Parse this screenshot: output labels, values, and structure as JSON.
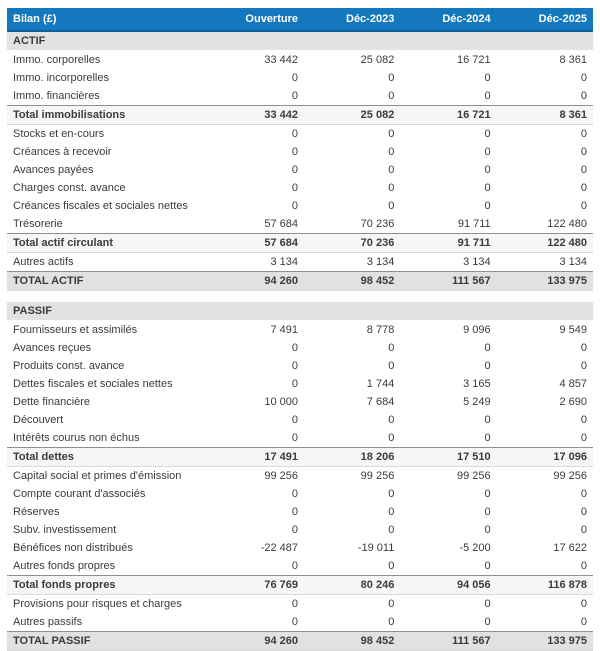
{
  "colors": {
    "header_bg": "#1478be",
    "header_border": "#0f5f97",
    "header_text": "#ffffff",
    "section_bg": "#e2e2e2",
    "subtotal_bg": "#f6f6f6",
    "total_bg": "#e1e1e1",
    "border_dark": "#8f8f8f",
    "border_light": "#d9d9d9",
    "text": "#3b3b3b"
  },
  "chart_data": {
    "type": "table",
    "title": "Bilan (£)",
    "columns": [
      "Ouverture",
      "Déc-2023",
      "Déc-2024",
      "Déc-2025"
    ],
    "sections": [
      {
        "title": "ACTIF",
        "rows": [
          {
            "label": "Immo. corporelles",
            "values": [
              "33 442",
              "25 082",
              "16 721",
              "8 361"
            ],
            "style": "normal"
          },
          {
            "label": "Immo. incorporelles",
            "values": [
              "0",
              "0",
              "0",
              "0"
            ],
            "style": "normal"
          },
          {
            "label": "Immo. financières",
            "values": [
              "0",
              "0",
              "0",
              "0"
            ],
            "style": "normal"
          },
          {
            "label": "Total immobilisations",
            "values": [
              "33 442",
              "25 082",
              "16 721",
              "8 361"
            ],
            "style": "subtotal"
          },
          {
            "label": "Stocks et en-cours",
            "values": [
              "0",
              "0",
              "0",
              "0"
            ],
            "style": "normal"
          },
          {
            "label": "Créances à recevoir",
            "values": [
              "0",
              "0",
              "0",
              "0"
            ],
            "style": "normal"
          },
          {
            "label": "Avances payées",
            "values": [
              "0",
              "0",
              "0",
              "0"
            ],
            "style": "normal"
          },
          {
            "label": "Charges const. avance",
            "values": [
              "0",
              "0",
              "0",
              "0"
            ],
            "style": "normal"
          },
          {
            "label": "Créances fiscales et sociales nettes",
            "values": [
              "0",
              "0",
              "0",
              "0"
            ],
            "style": "normal"
          },
          {
            "label": "Trésorerie",
            "values": [
              "57 684",
              "70 236",
              "91 711",
              "122 480"
            ],
            "style": "normal"
          },
          {
            "label": "Total actif circulant",
            "values": [
              "57 684",
              "70 236",
              "91 711",
              "122 480"
            ],
            "style": "subtotal"
          },
          {
            "label": "Autres actifs",
            "values": [
              "3 134",
              "3 134",
              "3 134",
              "3 134"
            ],
            "style": "normal"
          },
          {
            "label": "TOTAL ACTIF",
            "values": [
              "94 260",
              "98 452",
              "111 567",
              "133 975"
            ],
            "style": "grandtotal"
          }
        ]
      },
      {
        "title": "PASSIF",
        "rows": [
          {
            "label": "Fournisseurs et assimilés",
            "values": [
              "7 491",
              "8 778",
              "9 096",
              "9 549"
            ],
            "style": "normal"
          },
          {
            "label": "Avances reçues",
            "values": [
              "0",
              "0",
              "0",
              "0"
            ],
            "style": "normal"
          },
          {
            "label": "Produits const. avance",
            "values": [
              "0",
              "0",
              "0",
              "0"
            ],
            "style": "normal"
          },
          {
            "label": "Dettes fiscales et sociales nettes",
            "values": [
              "0",
              "1 744",
              "3 165",
              "4 857"
            ],
            "style": "normal"
          },
          {
            "label": "Dette financière",
            "values": [
              "10 000",
              "7 684",
              "5 249",
              "2 690"
            ],
            "style": "normal"
          },
          {
            "label": "Découvert",
            "values": [
              "0",
              "0",
              "0",
              "0"
            ],
            "style": "normal"
          },
          {
            "label": "Intérêts courus non échus",
            "values": [
              "0",
              "0",
              "0",
              "0"
            ],
            "style": "normal"
          },
          {
            "label": "Total dettes",
            "values": [
              "17 491",
              "18 206",
              "17 510",
              "17 096"
            ],
            "style": "subtotal"
          },
          {
            "label": "Capital social et primes d'émission",
            "values": [
              "99 256",
              "99 256",
              "99 256",
              "99 256"
            ],
            "style": "normal"
          },
          {
            "label": "Compte courant d'associés",
            "values": [
              "0",
              "0",
              "0",
              "0"
            ],
            "style": "normal"
          },
          {
            "label": "Réserves",
            "values": [
              "0",
              "0",
              "0",
              "0"
            ],
            "style": "normal"
          },
          {
            "label": "Subv. investissement",
            "values": [
              "0",
              "0",
              "0",
              "0"
            ],
            "style": "normal"
          },
          {
            "label": "Bénéfices non distribués",
            "values": [
              "-22 487",
              "-19 011",
              "-5 200",
              "17 622"
            ],
            "style": "normal"
          },
          {
            "label": "Autres fonds propres",
            "values": [
              "0",
              "0",
              "0",
              "0"
            ],
            "style": "normal"
          },
          {
            "label": "Total fonds propres",
            "values": [
              "76 769",
              "80 246",
              "94 056",
              "116 878"
            ],
            "style": "subtotal"
          },
          {
            "label": "Provisions pour risques et charges",
            "values": [
              "0",
              "0",
              "0",
              "0"
            ],
            "style": "normal"
          },
          {
            "label": "Autres passifs",
            "values": [
              "0",
              "0",
              "0",
              "0"
            ],
            "style": "normal"
          },
          {
            "label": "TOTAL PASSIF",
            "values": [
              "94 260",
              "98 452",
              "111 567",
              "133 975"
            ],
            "style": "grandtotal"
          }
        ]
      }
    ]
  }
}
